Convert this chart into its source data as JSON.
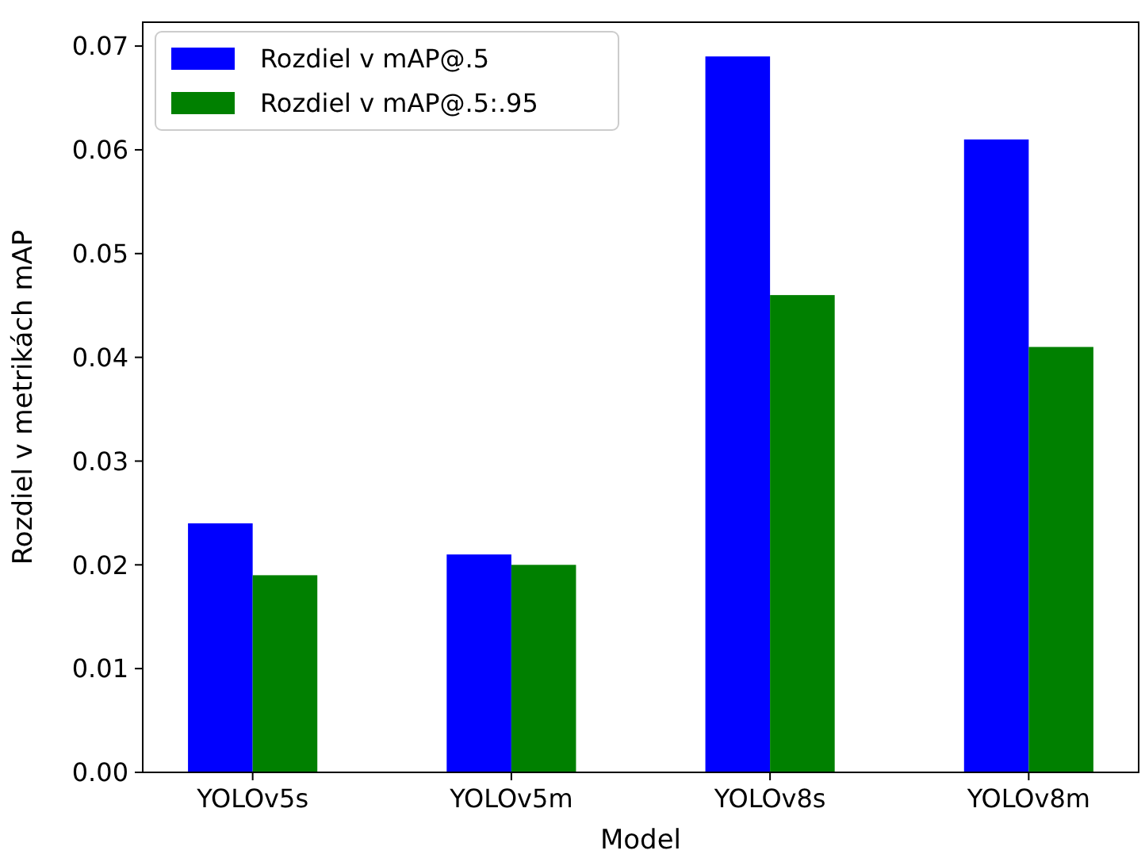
{
  "chart_data": {
    "type": "bar",
    "xlabel": "Model",
    "ylabel": "Rozdiel v metrikách mAP",
    "categories": [
      "YOLOv5s",
      "YOLOv5m",
      "YOLOv8s",
      "YOLOv8m"
    ],
    "series": [
      {
        "name": "Rozdiel v mAP@.5",
        "color": "#0000ff",
        "values": [
          0.024,
          0.021,
          0.069,
          0.061
        ]
      },
      {
        "name": "Rozdiel v mAP@.5:.95",
        "color": "#008000",
        "values": [
          0.019,
          0.02,
          0.046,
          0.041
        ]
      }
    ],
    "ylim": [
      0,
      0.0723
    ],
    "yticks": [
      {
        "value": 0,
        "label": "0.00"
      },
      {
        "value": 0.01,
        "label": "0.01"
      },
      {
        "value": 0.02,
        "label": "0.02"
      },
      {
        "value": 0.03,
        "label": "0.03"
      },
      {
        "value": 0.04,
        "label": "0.04"
      },
      {
        "value": 0.05,
        "label": "0.05"
      },
      {
        "value": 0.06,
        "label": "0.06"
      },
      {
        "value": 0.07,
        "label": "0.07"
      }
    ],
    "legend": "top left"
  }
}
